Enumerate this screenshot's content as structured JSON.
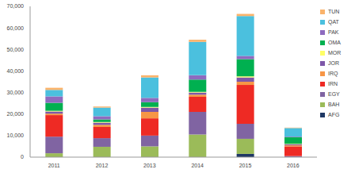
{
  "chart_data": {
    "type": "bar",
    "stacked": true,
    "legend": "right",
    "grid": false,
    "categories": [
      "2011",
      "2012",
      "2013",
      "2014",
      "2015",
      "2016"
    ],
    "ylim": [
      0,
      70000
    ],
    "yticks": [
      0,
      {
        "value": 10000,
        "label": "10,000"
      },
      {
        "value": 20000,
        "label": "20,000"
      },
      {
        "value": 30000,
        "label": "30,000"
      },
      {
        "value": 40000,
        "label": "40,000"
      },
      {
        "value": 50000,
        "label": "50,000"
      },
      {
        "value": 60000,
        "label": "60,000"
      },
      {
        "value": 70000,
        "label": "70,000"
      }
    ],
    "series": [
      {
        "name": "AFG",
        "color": "#1f3864",
        "values": [
          0,
          0,
          0,
          0,
          1500,
          0
        ]
      },
      {
        "name": "BAH",
        "color": "#9bbb59",
        "values": [
          1800,
          4800,
          5000,
          10500,
          7000,
          0
        ]
      },
      {
        "name": "EGY",
        "color": "#8064a2",
        "values": [
          7700,
          4000,
          5000,
          10500,
          7000,
          500
        ]
      },
      {
        "name": "IRN",
        "color": "#ee2a24",
        "values": [
          10000,
          5200,
          8000,
          7000,
          18000,
          4500
        ]
      },
      {
        "name": "IRQ",
        "color": "#f79646",
        "values": [
          700,
          1000,
          3000,
          1000,
          1500,
          500
        ]
      },
      {
        "name": "JOR",
        "color": "#7e57a8",
        "values": [
          1000,
          1000,
          2000,
          1000,
          2000,
          500
        ]
      },
      {
        "name": "MOR",
        "color": "#ffff66",
        "values": [
          300,
          300,
          300,
          300,
          500,
          200
        ]
      },
      {
        "name": "OMA",
        "color": "#00b050",
        "values": [
          3700,
          1200,
          2200,
          5700,
          8000,
          3000
        ]
      },
      {
        "name": "PAK",
        "color": "#8e6bbf",
        "values": [
          3000,
          1500,
          2000,
          2000,
          1500,
          300
        ]
      },
      {
        "name": "QAT",
        "color": "#4bc0de",
        "values": [
          3000,
          4000,
          9500,
          15500,
          18500,
          4000
        ]
      },
      {
        "name": "TUN",
        "color": "#fab36b",
        "values": [
          1000,
          500,
          1000,
          1000,
          1000,
          200
        ]
      }
    ]
  }
}
